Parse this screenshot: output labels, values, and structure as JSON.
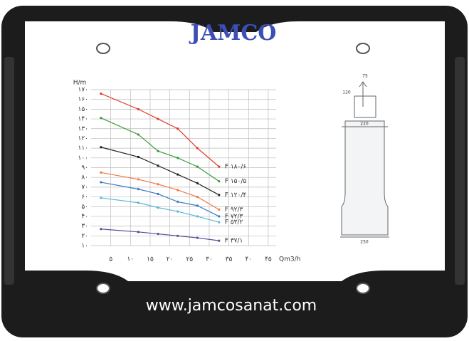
{
  "frame": {
    "logo": "JAMCO",
    "website": "www.jamcosanat.com"
  },
  "pump": {
    "dimensions": [
      "75",
      "120",
      "220",
      "250"
    ]
  },
  "chart_data": {
    "type": "line",
    "x_label": "Qm3/h",
    "y_label": "H/m",
    "x": [
      2.5,
      12,
      17,
      22,
      27,
      32.5
    ],
    "series": [
      {
        "name": "F ۱۸۰/۶",
        "color": "#e03a2a",
        "values": [
          166,
          150,
          140,
          130,
          110,
          91
        ]
      },
      {
        "name": "F ۱۵۰/۵",
        "color": "#3a9a3a",
        "values": [
          141,
          124,
          107,
          100,
          91,
          76
        ]
      },
      {
        "name": "F ۱۲۰/۴",
        "color": "#222222",
        "values": [
          111,
          101,
          92,
          83,
          74,
          62
        ]
      },
      {
        "name": "F ۹۲/۳",
        "color": "#f07a40",
        "values": [
          85,
          78,
          73,
          67,
          60,
          47
        ]
      },
      {
        "name": "F ۷۲/۳",
        "color": "#3a7ac8",
        "values": [
          75,
          68,
          63,
          55,
          51,
          40
        ]
      },
      {
        "name": "F ۵۳/۲",
        "color": "#5ab8d8",
        "values": [
          59,
          54,
          49,
          45,
          40,
          34
        ]
      },
      {
        "name": "F ۳۷/۱",
        "color": "#5a4a9a",
        "values": [
          27,
          24,
          22,
          20,
          18,
          15
        ]
      }
    ],
    "xlim": [
      0,
      47
    ],
    "ylim": [
      10,
      170
    ],
    "xticks": [
      {
        "value": 5,
        "label": "۵"
      },
      {
        "value": 10,
        "label": "۱۰"
      },
      {
        "value": 15,
        "label": "۱۵"
      },
      {
        "value": 20,
        "label": "۲۰"
      },
      {
        "value": 25,
        "label": "۲۵"
      },
      {
        "value": 30,
        "label": "۳۰"
      },
      {
        "value": 35,
        "label": "۳۵"
      },
      {
        "value": 40,
        "label": "۴۰"
      },
      {
        "value": 45,
        "label": "۴۵"
      }
    ],
    "yticks": [
      {
        "value": 10,
        "label": "۱۰"
      },
      {
        "value": 20,
        "label": "۲۰"
      },
      {
        "value": 30,
        "label": "۳۰"
      },
      {
        "value": 40,
        "label": "۴۰"
      },
      {
        "value": 50,
        "label": "۵۰"
      },
      {
        "value": 60,
        "label": "۶۰"
      },
      {
        "value": 70,
        "label": "۷۰"
      },
      {
        "value": 80,
        "label": "۸۰"
      },
      {
        "value": 90,
        "label": "۹۰"
      },
      {
        "value": 100,
        "label": "۱۰۰"
      },
      {
        "value": 110,
        "label": "۱۱۰"
      },
      {
        "value": 120,
        "label": "۱۲۰"
      },
      {
        "value": 130,
        "label": "۱۳۰"
      },
      {
        "value": 140,
        "label": "۱۴۰"
      },
      {
        "value": 150,
        "label": "۱۵۰"
      },
      {
        "value": 160,
        "label": "۱۶۰"
      },
      {
        "value": 170,
        "label": "۱۷۰"
      }
    ],
    "grid": true
  }
}
